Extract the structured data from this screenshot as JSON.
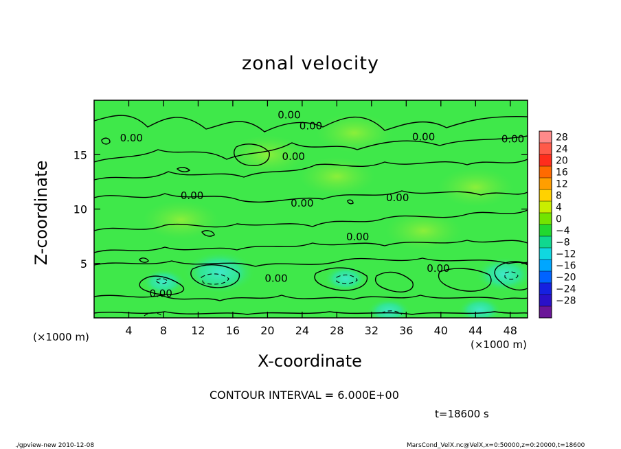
{
  "header": {
    "title": "zonal velocity"
  },
  "axes": {
    "xlabel": "X-coordinate",
    "ylabel": "Z-coordinate",
    "x_unit_left": "(×1000 m)",
    "x_unit_right": "(×1000 m)"
  },
  "annotations": {
    "contour_interval": "CONTOUR INTERVAL = 6.000E+00",
    "time": "t=18600 s",
    "footer_left": "./gpview-new   2010-12-08",
    "footer_right": "MarsCond_VelX.nc@VelX,x=0:50000,z=0:20000,t=18600"
  },
  "colors": {
    "background_field": "#3fe84a",
    "contour_line": "#000000"
  },
  "chart_data": {
    "type": "heatmap",
    "title": "zonal velocity",
    "xlabel": "X-coordinate",
    "ylabel": "Z-coordinate",
    "xlim": [
      0,
      50
    ],
    "ylim": [
      0,
      20
    ],
    "x_ticks": [
      4,
      8,
      12,
      16,
      20,
      24,
      28,
      32,
      36,
      40,
      44,
      48
    ],
    "y_ticks": [
      5,
      10,
      15
    ],
    "contour_interval": 6.0,
    "contour_labels": [
      {
        "x": 22.5,
        "y": 18.6,
        "text": "0.00"
      },
      {
        "x": 25,
        "y": 17.6,
        "text": "0.00"
      },
      {
        "x": 38,
        "y": 16.6,
        "text": "0.00"
      },
      {
        "x": 48.3,
        "y": 16.4,
        "text": "0.00"
      },
      {
        "x": 4.3,
        "y": 16.5,
        "text": "0.00"
      },
      {
        "x": 23,
        "y": 14.8,
        "text": "0.00"
      },
      {
        "x": 11.3,
        "y": 11.2,
        "text": "0.00"
      },
      {
        "x": 24,
        "y": 10.5,
        "text": "0.00"
      },
      {
        "x": 35,
        "y": 11,
        "text": "0.00"
      },
      {
        "x": 30.4,
        "y": 7.4,
        "text": "0.00"
      },
      {
        "x": 39.7,
        "y": 4.5,
        "text": "0.00"
      },
      {
        "x": 21,
        "y": 3.6,
        "text": "0.00"
      },
      {
        "x": 7.7,
        "y": 2.2,
        "text": "0.00"
      }
    ],
    "negative_pockets": [
      {
        "x": 14.5,
        "y": 4.2,
        "level": -8
      },
      {
        "x": 29,
        "y": 3.6,
        "level": -4
      },
      {
        "x": 47.3,
        "y": 4.0,
        "level": -6
      },
      {
        "x": 8,
        "y": 3.3,
        "level": -4
      },
      {
        "x": 34,
        "y": 0.6,
        "level": -4
      },
      {
        "x": 44.5,
        "y": 0.7,
        "level": -4
      }
    ],
    "colorbar": {
      "levels": [
        "28",
        "24",
        "20",
        "16",
        "12",
        "8",
        "4",
        "0",
        "-4",
        "-8",
        "-12",
        "-16",
        "-20",
        "-24",
        "-28"
      ],
      "colors": [
        "#ff8a8a",
        "#ff5a4a",
        "#ff2d1c",
        "#ff6a00",
        "#ff9e00",
        "#ffd200",
        "#c9ee00",
        "#73e400",
        "#21d830",
        "#10d890",
        "#10d8e0",
        "#00a6ff",
        "#0063ff",
        "#1520e0",
        "#2a10c8",
        "#6a1598"
      ]
    }
  }
}
